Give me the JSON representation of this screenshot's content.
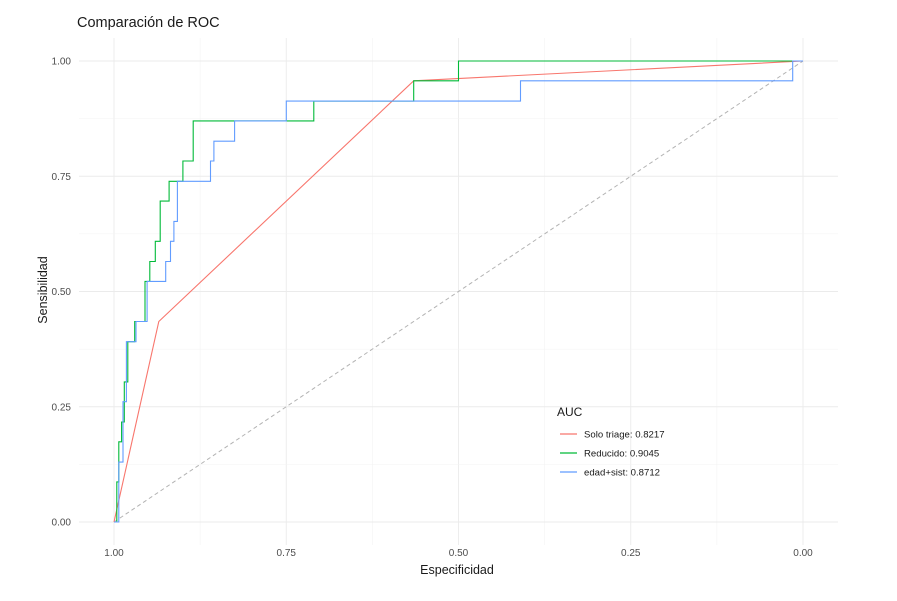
{
  "chart_data": {
    "type": "line",
    "title": "Comparación de ROC",
    "xlabel": "Especificidad",
    "ylabel": "Sensibilidad",
    "x_reversed": true,
    "xlim": [
      1.0,
      0.0
    ],
    "ylim": [
      0.0,
      1.0
    ],
    "x_ticks": [
      1.0,
      0.75,
      0.5,
      0.25,
      0.0
    ],
    "x_tick_labels": [
      "1.00",
      "0.75",
      "0.50",
      "0.25",
      "0.00"
    ],
    "y_ticks": [
      0.0,
      0.25,
      0.5,
      0.75,
      1.0
    ],
    "y_tick_labels": [
      "0.00",
      "0.25",
      "0.50",
      "0.75",
      "1.00"
    ],
    "grid": true,
    "legend": {
      "title": "AUC",
      "placement": "bottom-right inside plot"
    },
    "reference_line": {
      "from": [
        1.0,
        0.0
      ],
      "to": [
        0.0,
        1.0
      ],
      "style": "dashed",
      "color": "#b3b3b3"
    },
    "series": [
      {
        "name": "Solo triage: 0.8217",
        "color": "#F8766D",
        "points": [
          [
            1.0,
            0.0
          ],
          [
            0.935,
            0.435
          ],
          [
            0.565,
            0.957
          ],
          [
            0.0,
            1.0
          ]
        ]
      },
      {
        "name": "Reducido: 0.9045",
        "color": "#00BA38",
        "points": [
          [
            1.0,
            0.0
          ],
          [
            0.996,
            0.0
          ],
          [
            0.996,
            0.087
          ],
          [
            0.993,
            0.087
          ],
          [
            0.993,
            0.174
          ],
          [
            0.989,
            0.174
          ],
          [
            0.989,
            0.217
          ],
          [
            0.985,
            0.217
          ],
          [
            0.985,
            0.304
          ],
          [
            0.98,
            0.304
          ],
          [
            0.98,
            0.391
          ],
          [
            0.97,
            0.391
          ],
          [
            0.97,
            0.435
          ],
          [
            0.955,
            0.435
          ],
          [
            0.955,
            0.522
          ],
          [
            0.948,
            0.522
          ],
          [
            0.948,
            0.565
          ],
          [
            0.94,
            0.565
          ],
          [
            0.94,
            0.609
          ],
          [
            0.933,
            0.609
          ],
          [
            0.933,
            0.696
          ],
          [
            0.92,
            0.696
          ],
          [
            0.92,
            0.739
          ],
          [
            0.9,
            0.739
          ],
          [
            0.9,
            0.783
          ],
          [
            0.885,
            0.783
          ],
          [
            0.885,
            0.87
          ],
          [
            0.71,
            0.87
          ],
          [
            0.71,
            0.913
          ],
          [
            0.565,
            0.913
          ],
          [
            0.565,
            0.957
          ],
          [
            0.5,
            0.957
          ],
          [
            0.5,
            1.0
          ],
          [
            0.0,
            1.0
          ]
        ]
      },
      {
        "name": "edad+sist: 0.8712",
        "color": "#619CFF",
        "points": [
          [
            1.0,
            0.0
          ],
          [
            0.993,
            0.0
          ],
          [
            0.993,
            0.13
          ],
          [
            0.987,
            0.13
          ],
          [
            0.987,
            0.261
          ],
          [
            0.982,
            0.261
          ],
          [
            0.982,
            0.391
          ],
          [
            0.968,
            0.391
          ],
          [
            0.968,
            0.435
          ],
          [
            0.952,
            0.435
          ],
          [
            0.952,
            0.522
          ],
          [
            0.925,
            0.522
          ],
          [
            0.925,
            0.565
          ],
          [
            0.918,
            0.565
          ],
          [
            0.918,
            0.609
          ],
          [
            0.913,
            0.609
          ],
          [
            0.913,
            0.652
          ],
          [
            0.908,
            0.652
          ],
          [
            0.908,
            0.739
          ],
          [
            0.86,
            0.739
          ],
          [
            0.86,
            0.783
          ],
          [
            0.855,
            0.783
          ],
          [
            0.855,
            0.826
          ],
          [
            0.825,
            0.826
          ],
          [
            0.825,
            0.87
          ],
          [
            0.75,
            0.87
          ],
          [
            0.75,
            0.913
          ],
          [
            0.41,
            0.913
          ],
          [
            0.41,
            0.957
          ],
          [
            0.015,
            0.957
          ],
          [
            0.015,
            1.0
          ],
          [
            0.0,
            1.0
          ]
        ]
      }
    ]
  }
}
